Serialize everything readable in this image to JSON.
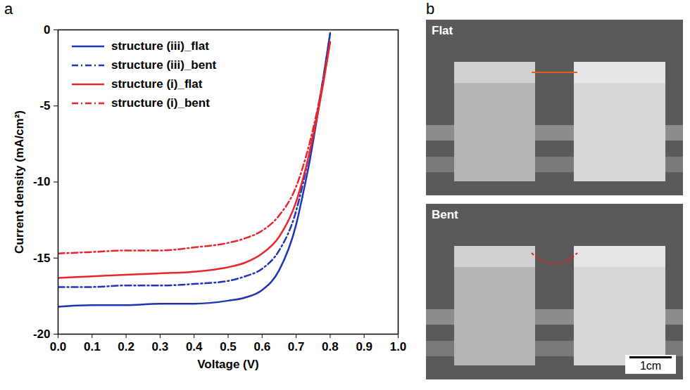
{
  "chart_data": {
    "type": "line",
    "panel_label": "a",
    "x_label": "Voltage (V)",
    "y_label": "Current density (mA/cm²)",
    "x": [
      0,
      0.1,
      0.2,
      0.3,
      0.4,
      0.5,
      0.55,
      0.6,
      0.65,
      0.7,
      0.72,
      0.74,
      0.76,
      0.78,
      0.8
    ],
    "series": [
      {
        "name": "structure (iii)_flat",
        "color": "#1f35b5",
        "line_style": "solid",
        "values": [
          -18.2,
          -18.1,
          -18.1,
          -18.0,
          -18.0,
          -17.8,
          -17.6,
          -17.1,
          -15.8,
          -12.8,
          -10.8,
          -8.6,
          -6.0,
          -3.2,
          -0.2
        ]
      },
      {
        "name": "structure (iii)_bent",
        "color": "#1f35b5",
        "line_style": "dashdot",
        "values": [
          -16.9,
          -16.9,
          -16.8,
          -16.8,
          -16.7,
          -16.5,
          -16.2,
          -15.7,
          -14.5,
          -11.9,
          -10.1,
          -8.0,
          -5.7,
          -3.1,
          -0.3
        ]
      },
      {
        "name": "structure (i)_flat",
        "color": "#e8262b",
        "line_style": "solid",
        "values": [
          -16.3,
          -16.2,
          -16.1,
          -16.0,
          -15.9,
          -15.6,
          -15.3,
          -14.7,
          -13.6,
          -11.3,
          -9.8,
          -8.0,
          -5.9,
          -3.5,
          -0.8
        ]
      },
      {
        "name": "structure (i)_bent",
        "color": "#e8262b",
        "line_style": "dashdot",
        "values": [
          -14.7,
          -14.6,
          -14.5,
          -14.5,
          -14.3,
          -14.0,
          -13.7,
          -13.2,
          -12.2,
          -10.3,
          -9.0,
          -7.4,
          -5.5,
          -3.3,
          -0.8
        ]
      }
    ],
    "xlim": [
      0,
      1.0
    ],
    "xticks": [
      {
        "value": 0,
        "label": "0.0"
      },
      {
        "value": 0.1,
        "label": "0.1"
      },
      {
        "value": 0.2,
        "label": "0.2"
      },
      {
        "value": 0.3,
        "label": "0.3"
      },
      {
        "value": 0.4,
        "label": "0.4"
      },
      {
        "value": 0.5,
        "label": "0.5"
      },
      {
        "value": 0.6,
        "label": "0.6"
      },
      {
        "value": 0.7,
        "label": "0.7"
      },
      {
        "value": 0.8,
        "label": "0.8"
      },
      {
        "value": 0.9,
        "label": "0.9"
      },
      {
        "value": 1.0,
        "label": "1.0"
      }
    ],
    "ylim": [
      -20,
      0
    ],
    "yticks": [
      -20,
      -15,
      -10,
      -5,
      0
    ],
    "grid": false,
    "legend": "upper left"
  },
  "photo_panel": {
    "panel_label": "b",
    "images": [
      {
        "label": "Flat"
      },
      {
        "label": "Bent"
      }
    ],
    "scale_bar": "1cm"
  }
}
